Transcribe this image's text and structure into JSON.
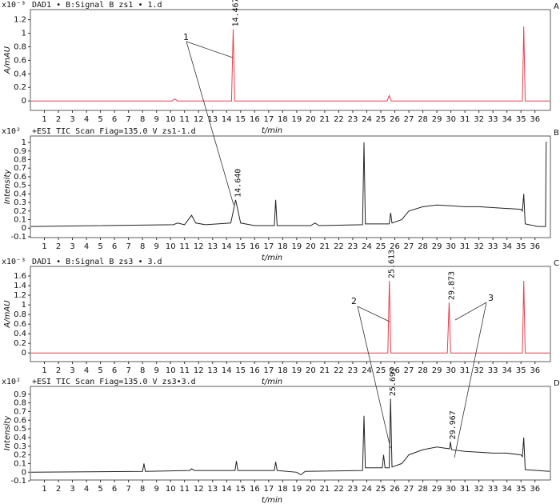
{
  "chart_data": [
    {
      "type": "line",
      "panel": "A",
      "scale_label": "x10⁻³",
      "title": "DAD1 • B:Signal B zs1 • 1.d",
      "y_label": "A/mAU",
      "x_label": "t/min",
      "color": "#e0404f",
      "x": [
        0.05,
        10.1,
        10.3,
        10.5,
        14.35,
        14.467,
        14.58,
        25.45,
        25.6,
        25.75,
        35.1,
        35.2,
        35.3,
        37.05
      ],
      "values": [
        0,
        0,
        0.03,
        0,
        0,
        1.06,
        0,
        0,
        0.08,
        0,
        0,
        1.1,
        0,
        0
      ],
      "xlim": [
        0,
        37.1
      ],
      "xticks": [
        1,
        2,
        3,
        4,
        5,
        6,
        7,
        8,
        9,
        10,
        11,
        12,
        13,
        14,
        15,
        16,
        17,
        18,
        19,
        20,
        21,
        22,
        23,
        24,
        25,
        26,
        27,
        28,
        29,
        30,
        31,
        32,
        33,
        34,
        35,
        36
      ],
      "ylim": [
        -0.14,
        1.35
      ],
      "yticks": [
        0,
        0.2,
        0.4,
        0.6,
        0.8,
        1,
        1.2
      ],
      "peak_labels": [
        "14.467"
      ]
    },
    {
      "type": "line",
      "panel": "B",
      "scale_label": "x10²",
      "title": "+ESI TIC Scan Fiag=135.0 V zs1-1.d",
      "y_label": "Intensity",
      "x_label": "t/min",
      "color": "#222222",
      "x": [
        0.05,
        10.2,
        10.5,
        11.0,
        11.5,
        11.8,
        12.5,
        14.3,
        14.64,
        15.0,
        16,
        17.4,
        17.5,
        17.6,
        20,
        20.3,
        20.6,
        23.7,
        23.8,
        23.9,
        25.6,
        25.7,
        25.8,
        26.5,
        27,
        28,
        29,
        30,
        31,
        32,
        33,
        34,
        35,
        35.1,
        35.2,
        35.3,
        36.2,
        36.75,
        36.8,
        36.85
      ],
      "values": [
        0.02,
        0.04,
        0.06,
        0.04,
        0.15,
        0.06,
        0.04,
        0.06,
        0.33,
        0.06,
        0.03,
        0.03,
        0.33,
        0.03,
        0.03,
        0.06,
        0.03,
        0.04,
        1.0,
        0.05,
        0.05,
        0.18,
        0.06,
        0.1,
        0.2,
        0.25,
        0.27,
        0.26,
        0.25,
        0.25,
        0.24,
        0.23,
        0.22,
        0.2,
        0.4,
        0.05,
        0.02,
        0.02,
        1.0,
        1.0
      ],
      "xlim": [
        0,
        37.1
      ],
      "xticks": [
        1,
        2,
        3,
        4,
        5,
        6,
        7,
        8,
        9,
        10,
        11,
        12,
        13,
        14,
        15,
        16,
        17,
        18,
        19,
        20,
        21,
        22,
        23,
        24,
        25,
        26,
        27,
        28,
        29,
        30,
        31,
        32,
        33,
        34,
        35,
        36
      ],
      "ylim": [
        -0.11,
        1.075
      ],
      "yticks": [
        -0.1,
        0,
        0.1,
        0.2,
        0.3,
        0.4,
        0.5,
        0.6,
        0.7,
        0.8,
        0.9,
        1
      ],
      "peak_labels": [
        "14.640"
      ]
    },
    {
      "type": "line",
      "panel": "C",
      "scale_label": "x10⁻³",
      "title": "DAD1 • B:Signal B zs3 • 3.d",
      "y_label": "A/mAU",
      "x_label": "t/min",
      "color": "#e0404f",
      "x": [
        0.05,
        25.5,
        25.613,
        25.72,
        29.75,
        29.873,
        29.98,
        35.1,
        35.2,
        35.3,
        37.05
      ],
      "values": [
        0,
        0,
        1.5,
        0,
        0,
        1.05,
        0,
        0,
        1.5,
        0,
        0
      ],
      "xlim": [
        0,
        37.1
      ],
      "xticks": [
        1,
        2,
        3,
        4,
        5,
        6,
        7,
        8,
        9,
        10,
        11,
        12,
        13,
        14,
        15,
        16,
        17,
        18,
        19,
        20,
        21,
        22,
        23,
        24,
        25,
        26,
        27,
        28,
        29,
        30,
        31,
        32,
        33,
        34,
        35,
        36
      ],
      "ylim": [
        -0.18,
        1.8
      ],
      "yticks": [
        0,
        0.2,
        0.4,
        0.6,
        0.8,
        1,
        1.2,
        1.4,
        1.6
      ],
      "peak_labels": [
        "25.613",
        "29.873"
      ]
    },
    {
      "type": "line",
      "panel": "D",
      "scale_label": "x10²",
      "title": "+ESI TIC Scan Fiag=135.0 V zs3•3.d",
      "y_label": "Intensity",
      "x_label": "t/min",
      "color": "#222222",
      "x": [
        0.05,
        8.0,
        8.1,
        8.2,
        11.4,
        11.5,
        11.7,
        14.6,
        14.7,
        14.8,
        17.4,
        17.5,
        17.6,
        19,
        19.3,
        19.6,
        23.7,
        23.8,
        23.9,
        25.1,
        25.2,
        25.3,
        25.6,
        25.697,
        25.8,
        26.5,
        27,
        28,
        29,
        29.9,
        29.967,
        30.05,
        31,
        32,
        33,
        34,
        35,
        35.1,
        35.2,
        35.3,
        37.05
      ],
      "values": [
        0,
        0.01,
        0.1,
        0.01,
        0.02,
        0.04,
        0.02,
        0.02,
        0.13,
        0.02,
        0.02,
        0.12,
        0.02,
        0,
        -0.03,
        0.01,
        0.02,
        0.65,
        0.05,
        0.05,
        0.2,
        0.05,
        0.05,
        0.85,
        0.06,
        0.1,
        0.2,
        0.26,
        0.29,
        0.27,
        0.35,
        0.26,
        0.24,
        0.23,
        0.22,
        0.22,
        0.2,
        0.18,
        0.4,
        0.03,
        0.01
      ],
      "xlim": [
        0,
        37.1
      ],
      "xticks": [
        1,
        2,
        3,
        4,
        5,
        6,
        7,
        8,
        9,
        10,
        11,
        12,
        13,
        14,
        15,
        16,
        17,
        18,
        19,
        20,
        21,
        22,
        23,
        24,
        25,
        26,
        27,
        28,
        29,
        30,
        31,
        32,
        33,
        34,
        35,
        36
      ],
      "ylim": [
        -0.09,
        0.99
      ],
      "yticks": [
        -0.1,
        0,
        0.1,
        0.2,
        0.3,
        0.4,
        0.5,
        0.6,
        0.7,
        0.8,
        0.9
      ],
      "peak_labels": [
        "25.697",
        "29.967"
      ]
    }
  ],
  "annotations": [
    "1",
    "2",
    "3"
  ]
}
